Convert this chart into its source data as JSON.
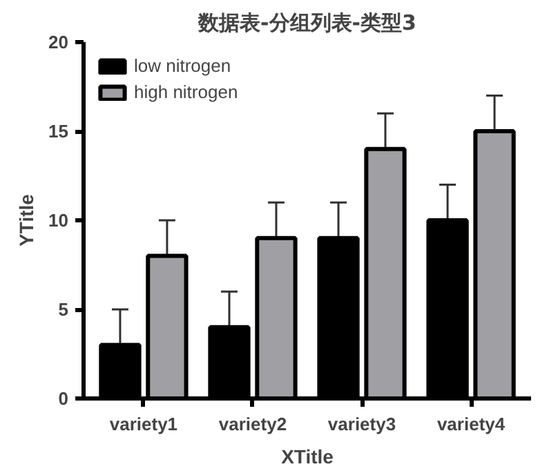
{
  "chart_data": {
    "type": "bar",
    "title": "数据表-分组列表-类型3",
    "xlabel": "XTitle",
    "ylabel": "YTitle",
    "categories": [
      "variety1",
      "variety2",
      "variety3",
      "variety4"
    ],
    "series": [
      {
        "name": "low nitrogen",
        "color": "#000000",
        "values": [
          3,
          4,
          9,
          10
        ],
        "errors": [
          2,
          2,
          2,
          2
        ]
      },
      {
        "name": "high nitrogen",
        "color": "#a0a0a4",
        "values": [
          8,
          9,
          14,
          15
        ],
        "errors": [
          2,
          2,
          2,
          2
        ]
      }
    ],
    "ylim": [
      0,
      20
    ],
    "yticks": [
      0,
      5,
      10,
      15,
      20
    ],
    "grid": false,
    "legend": "top left"
  }
}
